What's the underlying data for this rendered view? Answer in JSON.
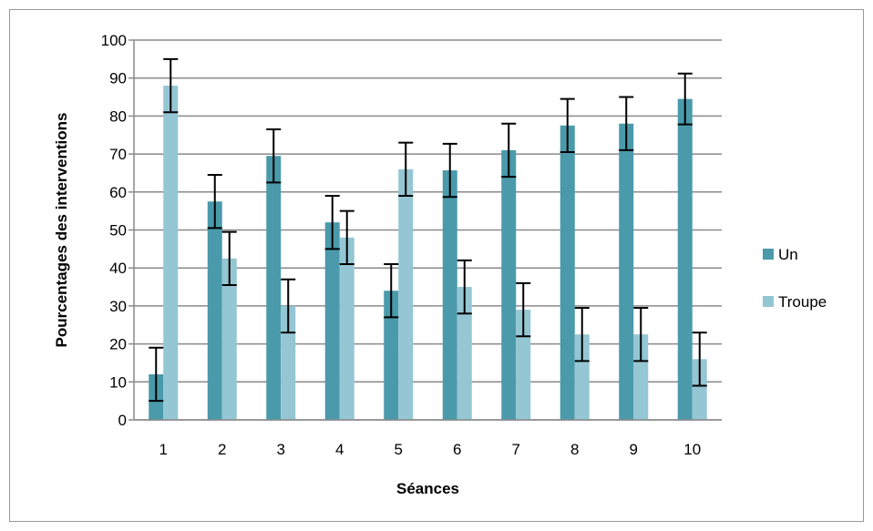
{
  "chart_data": {
    "type": "bar",
    "title": "",
    "xlabel": "Séances",
    "ylabel": "Pourcentages des interventions",
    "categories": [
      "1",
      "2",
      "3",
      "4",
      "5",
      "6",
      "7",
      "8",
      "9",
      "10"
    ],
    "yticks": [
      "0",
      "10",
      "20",
      "30",
      "40",
      "50",
      "60",
      "70",
      "80",
      "90",
      "100"
    ],
    "ylim": [
      0,
      100
    ],
    "grid": true,
    "legend_position": "right",
    "series": [
      {
        "name": "Un",
        "color": "#4a9aab",
        "values": [
          12,
          57.5,
          69.5,
          52,
          34,
          65.7,
          71,
          77.5,
          78,
          84.5
        ],
        "error": [
          7,
          7,
          7,
          7,
          7,
          7,
          7,
          7,
          7,
          6.7
        ]
      },
      {
        "name": "Troupe",
        "color": "#94c6d4",
        "values": [
          88,
          42.5,
          30,
          48,
          66,
          35,
          29,
          22.5,
          22.5,
          16
        ],
        "error": [
          7,
          7,
          7,
          7,
          7,
          7,
          7,
          7,
          7,
          7
        ]
      }
    ]
  }
}
